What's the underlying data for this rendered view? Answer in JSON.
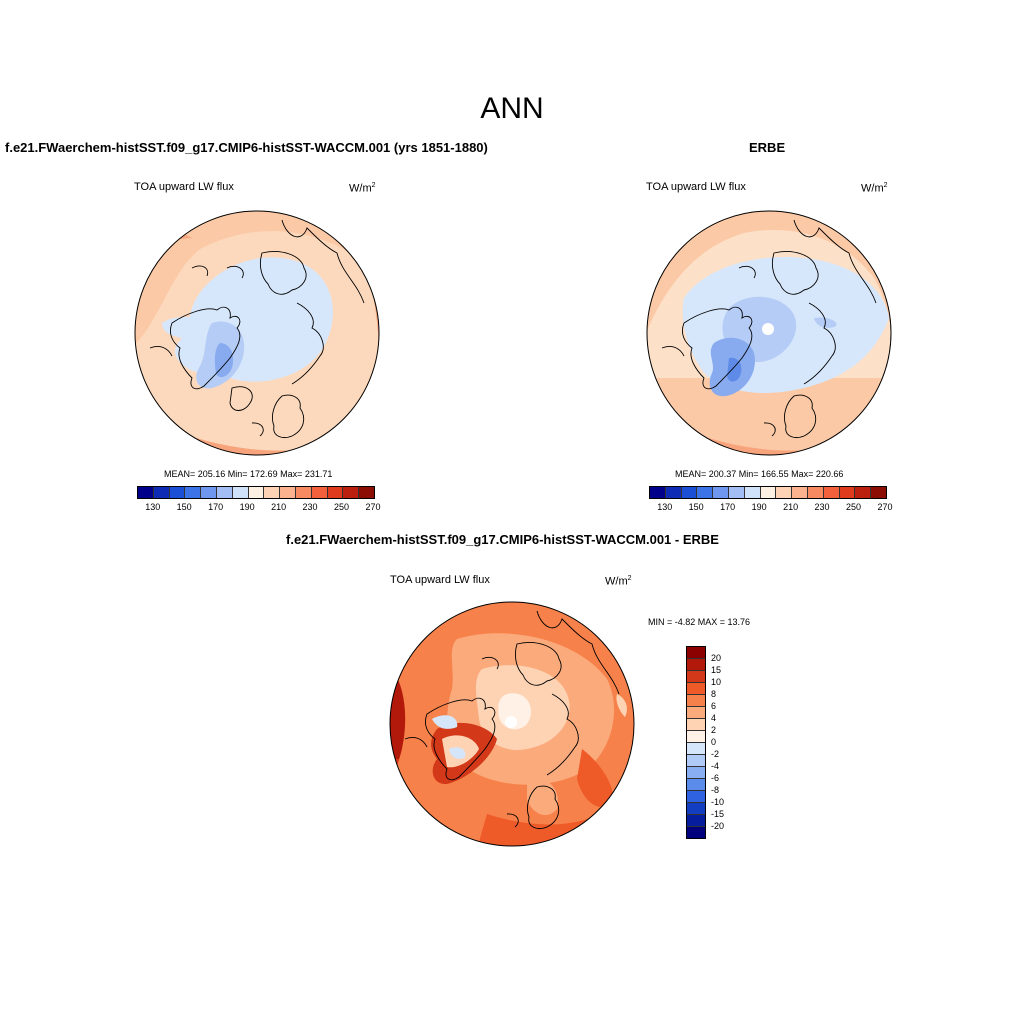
{
  "page_title": "ANN",
  "panels": [
    {
      "title": "f.e21.FWaerchem-histSST.f09_g17.CMIP6-histSST-WACCM.001 (yrs 1851-1880)",
      "variable": "TOA upward LW flux",
      "units_base": "W/m",
      "units_exp": "2",
      "stats_text": "MEAN= 205.16  Min= 172.69  Max= 231.71"
    },
    {
      "title": "ERBE",
      "variable": "TOA upward LW flux",
      "units_base": "W/m",
      "units_exp": "2",
      "stats_text": "MEAN= 200.37  Min= 166.55  Max= 220.66"
    },
    {
      "title": "f.e21.FWaerchem-histSST.f09_g17.CMIP6-histSST-WACCM.001 - ERBE",
      "variable": "TOA upward LW flux",
      "units_base": "W/m",
      "units_exp": "2",
      "stats_text": "MIN =  -4.82 MAX =  13.76"
    }
  ],
  "colorbar_abs": {
    "colors": [
      "#00008b",
      "#0d2bb5",
      "#1a4fd6",
      "#3c74e8",
      "#6f97f0",
      "#a3bdf5",
      "#d0e1fa",
      "#fef0e2",
      "#fdd2b5",
      "#fbb28e",
      "#f88a62",
      "#f2613c",
      "#df3b1c",
      "#bb200f",
      "#8c0d04"
    ],
    "tick_labels": [
      "130",
      "150",
      "170",
      "190",
      "210",
      "230",
      "250",
      "270"
    ]
  },
  "colorbar_diff": {
    "colors_top_to_bottom": [
      "#8b0000",
      "#b2190b",
      "#d33818",
      "#ee5a28",
      "#f7814a",
      "#fbaa7c",
      "#fdd3b4",
      "#fff1e6",
      "#d6e6fa",
      "#b0cbf6",
      "#89aef2",
      "#5b8cec",
      "#2f62e0",
      "#133ec2",
      "#061e9d",
      "#00007d"
    ],
    "tick_labels": [
      "20",
      "15",
      "10",
      "8",
      "6",
      "4",
      "2",
      "0",
      "-2",
      "-4",
      "-6",
      "-8",
      "-10",
      "-15",
      "-20"
    ]
  },
  "chart_data": [
    {
      "type": "heatmap",
      "projection": "north-polar-stereographic",
      "title": "f.e21.FWaerchem-histSST.f09_g17.CMIP6-histSST-WACCM.001 (yrs 1851-1880)",
      "variable": "TOA upward LW flux",
      "units": "W/m2",
      "mean": 205.16,
      "min": 172.69,
      "max": 231.71,
      "colorbar_levels": [
        130,
        140,
        150,
        160,
        170,
        180,
        190,
        200,
        210,
        220,
        230,
        240,
        250,
        260,
        270
      ]
    },
    {
      "type": "heatmap",
      "projection": "north-polar-stereographic",
      "title": "ERBE",
      "variable": "TOA upward LW flux",
      "units": "W/m2",
      "mean": 200.37,
      "min": 166.55,
      "max": 220.66,
      "colorbar_levels": [
        130,
        140,
        150,
        160,
        170,
        180,
        190,
        200,
        210,
        220,
        230,
        240,
        250,
        260,
        270
      ]
    },
    {
      "type": "heatmap",
      "projection": "north-polar-stereographic",
      "title": "f.e21.FWaerchem-histSST.f09_g17.CMIP6-histSST-WACCM.001 - ERBE",
      "variable": "TOA upward LW flux",
      "units": "W/m2",
      "min": -4.82,
      "max": 13.76,
      "colorbar_levels": [
        -20,
        -15,
        -10,
        -8,
        -6,
        -4,
        -2,
        0,
        2,
        4,
        6,
        8,
        10,
        15,
        20
      ]
    }
  ]
}
